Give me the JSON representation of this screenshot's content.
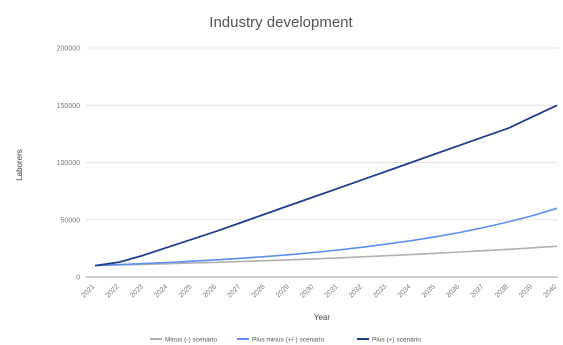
{
  "chart_data": {
    "type": "line",
    "title": "Industry development",
    "xlabel": "Year",
    "ylabel": "Laborers",
    "ylim": [
      0,
      200000
    ],
    "yticks": [
      "0",
      "50000",
      "100000",
      "150000",
      "200000"
    ],
    "grid": true,
    "legend_position": "bottom",
    "x": [
      "2021",
      "2022",
      "2023",
      "2024",
      "2025",
      "2026",
      "2027",
      "2028",
      "2029",
      "2030",
      "2031",
      "2032",
      "2033",
      "2034",
      "2035",
      "2036",
      "2037",
      "2038",
      "2039",
      "2040"
    ],
    "series": [
      {
        "name": "Minus (-) scenario",
        "color": "#b0b0b0",
        "values": [
          10000,
          10500,
          11000,
          11600,
          12200,
          12800,
          13500,
          14200,
          15000,
          15800,
          16700,
          17600,
          18600,
          19600,
          20700,
          21800,
          23000,
          24200,
          25500,
          26900
        ]
      },
      {
        "name": "Plus minus (+/-) scenario",
        "color": "#5b8ff0",
        "values": [
          10000,
          10800,
          11700,
          12700,
          13800,
          15000,
          16300,
          17800,
          19500,
          21400,
          23600,
          26000,
          28700,
          31700,
          35100,
          38900,
          43200,
          48100,
          53600,
          60000
        ]
      },
      {
        "name": "Plus (+) scenario",
        "color": "#1f3f8c",
        "values": [
          10000,
          13000,
          19000,
          26000,
          33000,
          40000,
          47500,
          55000,
          62500,
          70000,
          77500,
          85000,
          92500,
          100000,
          107500,
          115000,
          122500,
          130000,
          140000,
          150000
        ]
      }
    ]
  }
}
